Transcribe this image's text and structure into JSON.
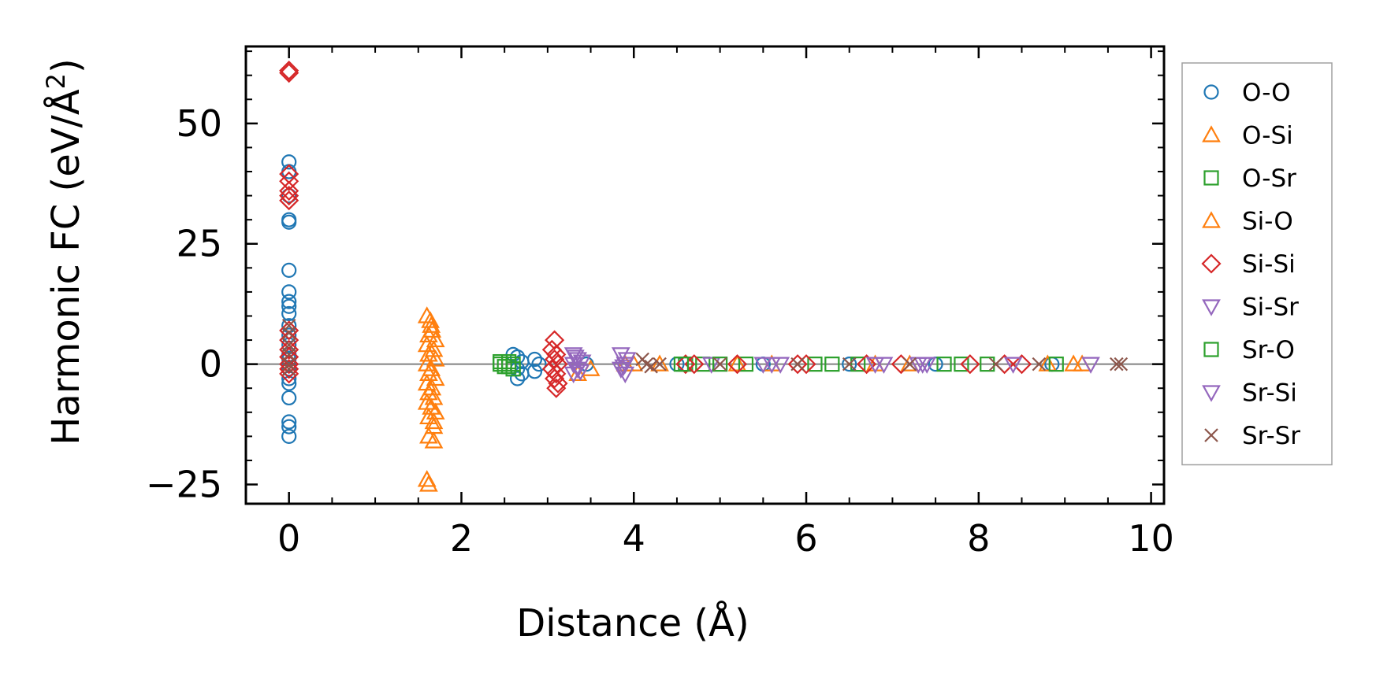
{
  "chart_data": {
    "type": "scatter",
    "xlabel": "Distance (Å)",
    "ylabel": "Harmonic FC (eV/Å²)",
    "ylabel_parts": {
      "main": "Harmonic FC (eV/Å",
      "sup": "2",
      "close": ")"
    },
    "xlim": [
      -0.5,
      10.15
    ],
    "ylim": [
      -29,
      66
    ],
    "x_ticks": [
      0,
      2,
      4,
      6,
      8,
      10
    ],
    "x_tick_labels": [
      "0",
      "2",
      "4",
      "6",
      "8",
      "10"
    ],
    "y_ticks": [
      -25,
      0,
      25,
      50
    ],
    "y_tick_labels": [
      "−25",
      "0",
      "25",
      "50"
    ],
    "zero_line": true,
    "grid": false,
    "legend_position": "outside-right",
    "series": [
      {
        "name": "O-O",
        "marker": "circle",
        "color": "#1f77b4",
        "points": [
          [
            0,
            42
          ],
          [
            0,
            40
          ],
          [
            0,
            35
          ],
          [
            0,
            30
          ],
          [
            0,
            29.5
          ],
          [
            0,
            19.5
          ],
          [
            0,
            15
          ],
          [
            0,
            13
          ],
          [
            0,
            12
          ],
          [
            0,
            10.5
          ],
          [
            0,
            8
          ],
          [
            0,
            6
          ],
          [
            0,
            4
          ],
          [
            0,
            2
          ],
          [
            0,
            1
          ],
          [
            0,
            0
          ],
          [
            0,
            -1
          ],
          [
            0,
            -3
          ],
          [
            0,
            -4
          ],
          [
            0,
            -7
          ],
          [
            0,
            -12
          ],
          [
            0,
            -13
          ],
          [
            0,
            -15
          ],
          [
            2.6,
            2
          ],
          [
            2.65,
            1.5
          ],
          [
            2.7,
            0.5
          ],
          [
            2.65,
            -1
          ],
          [
            2.7,
            -2
          ],
          [
            2.65,
            -3
          ],
          [
            2.85,
            1
          ],
          [
            2.85,
            -1.5
          ],
          [
            2.9,
            0
          ],
          [
            3.45,
            0
          ],
          [
            4.5,
            0
          ],
          [
            5.5,
            0
          ],
          [
            6.5,
            0
          ],
          [
            7.5,
            0
          ],
          [
            8.85,
            0
          ]
        ]
      },
      {
        "name": "O-Si",
        "marker": "triangle-up",
        "color": "#ff7f0e",
        "points": [
          [
            1.6,
            10
          ],
          [
            1.65,
            8
          ],
          [
            1.62,
            6
          ],
          [
            1.7,
            5
          ],
          [
            1.6,
            4
          ],
          [
            1.68,
            3
          ],
          [
            1.62,
            2
          ],
          [
            1.7,
            1
          ],
          [
            1.6,
            0
          ],
          [
            1.65,
            -1
          ],
          [
            1.62,
            -2
          ],
          [
            1.7,
            -3
          ],
          [
            1.6,
            -4
          ],
          [
            1.66,
            -5
          ],
          [
            1.62,
            -6
          ],
          [
            1.68,
            -7
          ],
          [
            1.6,
            -8
          ],
          [
            1.65,
            -9
          ],
          [
            1.7,
            -10
          ],
          [
            1.62,
            -11
          ],
          [
            1.68,
            -13
          ],
          [
            1.62,
            -15
          ],
          [
            1.68,
            -16
          ],
          [
            1.6,
            -24
          ],
          [
            1.62,
            -25
          ],
          [
            3.5,
            -1
          ],
          [
            3.9,
            0
          ],
          [
            4.3,
            0
          ],
          [
            5.2,
            0
          ],
          [
            6.8,
            0
          ],
          [
            8.8,
            0
          ],
          [
            9.1,
            0
          ]
        ]
      },
      {
        "name": "O-Sr",
        "marker": "square",
        "color": "#2ca02c",
        "points": [
          [
            2.45,
            0
          ],
          [
            2.5,
            -0.5
          ],
          [
            2.55,
            0.5
          ],
          [
            2.6,
            -1
          ],
          [
            4.6,
            0
          ],
          [
            4.8,
            0
          ],
          [
            5.3,
            0
          ],
          [
            6.1,
            0
          ],
          [
            6.6,
            0
          ],
          [
            7.8,
            0
          ],
          [
            8.1,
            0
          ]
        ]
      },
      {
        "name": "Si-O",
        "marker": "triangle-up",
        "color": "#ff7f0e",
        "points": [
          [
            1.64,
            9
          ],
          [
            1.66,
            7
          ],
          [
            1.68,
            -12
          ],
          [
            3.35,
            -2
          ],
          [
            4.0,
            0
          ],
          [
            5.6,
            0
          ],
          [
            7.2,
            0
          ],
          [
            9.2,
            0
          ]
        ]
      },
      {
        "name": "Si-Si",
        "marker": "diamond",
        "color": "#d62728",
        "points": [
          [
            0,
            61
          ],
          [
            0,
            60.5
          ],
          [
            0,
            39.5
          ],
          [
            0,
            38
          ],
          [
            0,
            36
          ],
          [
            0,
            35
          ],
          [
            0,
            34
          ],
          [
            0,
            7
          ],
          [
            0,
            5
          ],
          [
            0,
            3
          ],
          [
            0,
            1.5
          ],
          [
            0,
            0
          ],
          [
            0,
            -1
          ],
          [
            0,
            -2
          ],
          [
            3.08,
            5
          ],
          [
            3.05,
            3
          ],
          [
            3.1,
            2
          ],
          [
            3.08,
            1
          ],
          [
            3.12,
            0
          ],
          [
            3.05,
            -1
          ],
          [
            3.1,
            -2
          ],
          [
            3.08,
            -3
          ],
          [
            3.12,
            -4
          ],
          [
            3.1,
            -5
          ],
          [
            4.6,
            0
          ],
          [
            4.7,
            0
          ],
          [
            5.2,
            0
          ],
          [
            5.9,
            0
          ],
          [
            6.0,
            0
          ],
          [
            6.7,
            0
          ],
          [
            7.1,
            0
          ],
          [
            7.9,
            0
          ],
          [
            8.3,
            0
          ],
          [
            8.5,
            0
          ]
        ]
      },
      {
        "name": "Si-Sr",
        "marker": "triangle-down",
        "color": "#9467bd",
        "points": [
          [
            3.3,
            2
          ],
          [
            3.35,
            1
          ],
          [
            3.3,
            0
          ],
          [
            3.35,
            -1
          ],
          [
            3.3,
            -2
          ],
          [
            3.4,
            0.5
          ],
          [
            3.85,
            2
          ],
          [
            3.9,
            0
          ],
          [
            3.85,
            -1
          ],
          [
            3.9,
            -2
          ],
          [
            4.9,
            0
          ],
          [
            5.6,
            0
          ],
          [
            5.7,
            0
          ],
          [
            6.8,
            0
          ],
          [
            7.3,
            0
          ],
          [
            7.4,
            0
          ],
          [
            8.4,
            0
          ],
          [
            9.3,
            0
          ]
        ]
      },
      {
        "name": "Sr-O",
        "marker": "square",
        "color": "#2ca02c",
        "points": [
          [
            2.45,
            0.5
          ],
          [
            2.55,
            -0.5
          ],
          [
            2.6,
            0
          ],
          [
            4.55,
            0
          ],
          [
            5.0,
            0
          ],
          [
            6.3,
            0
          ],
          [
            7.6,
            0
          ],
          [
            8.9,
            0
          ]
        ]
      },
      {
        "name": "Sr-Si",
        "marker": "triangle-down",
        "color": "#9467bd",
        "points": [
          [
            3.32,
            1.5
          ],
          [
            3.38,
            -1.5
          ],
          [
            3.92,
            1
          ],
          [
            3.88,
            -0.5
          ],
          [
            5.5,
            0
          ],
          [
            6.9,
            0
          ],
          [
            7.35,
            0
          ]
        ]
      },
      {
        "name": "Sr-Sr",
        "marker": "x",
        "color": "#8c564b",
        "points": [
          [
            0,
            8
          ],
          [
            0,
            6.5
          ],
          [
            0,
            4
          ],
          [
            0,
            2
          ],
          [
            0,
            0
          ],
          [
            0,
            -1
          ],
          [
            4.1,
            1
          ],
          [
            4.15,
            0
          ],
          [
            4.2,
            -0.5
          ],
          [
            4.3,
            0
          ],
          [
            5.0,
            0
          ],
          [
            5.9,
            0
          ],
          [
            6.5,
            0
          ],
          [
            7.2,
            0
          ],
          [
            8.2,
            0
          ],
          [
            8.7,
            0
          ],
          [
            9.6,
            0
          ],
          [
            9.65,
            0
          ]
        ]
      }
    ]
  }
}
